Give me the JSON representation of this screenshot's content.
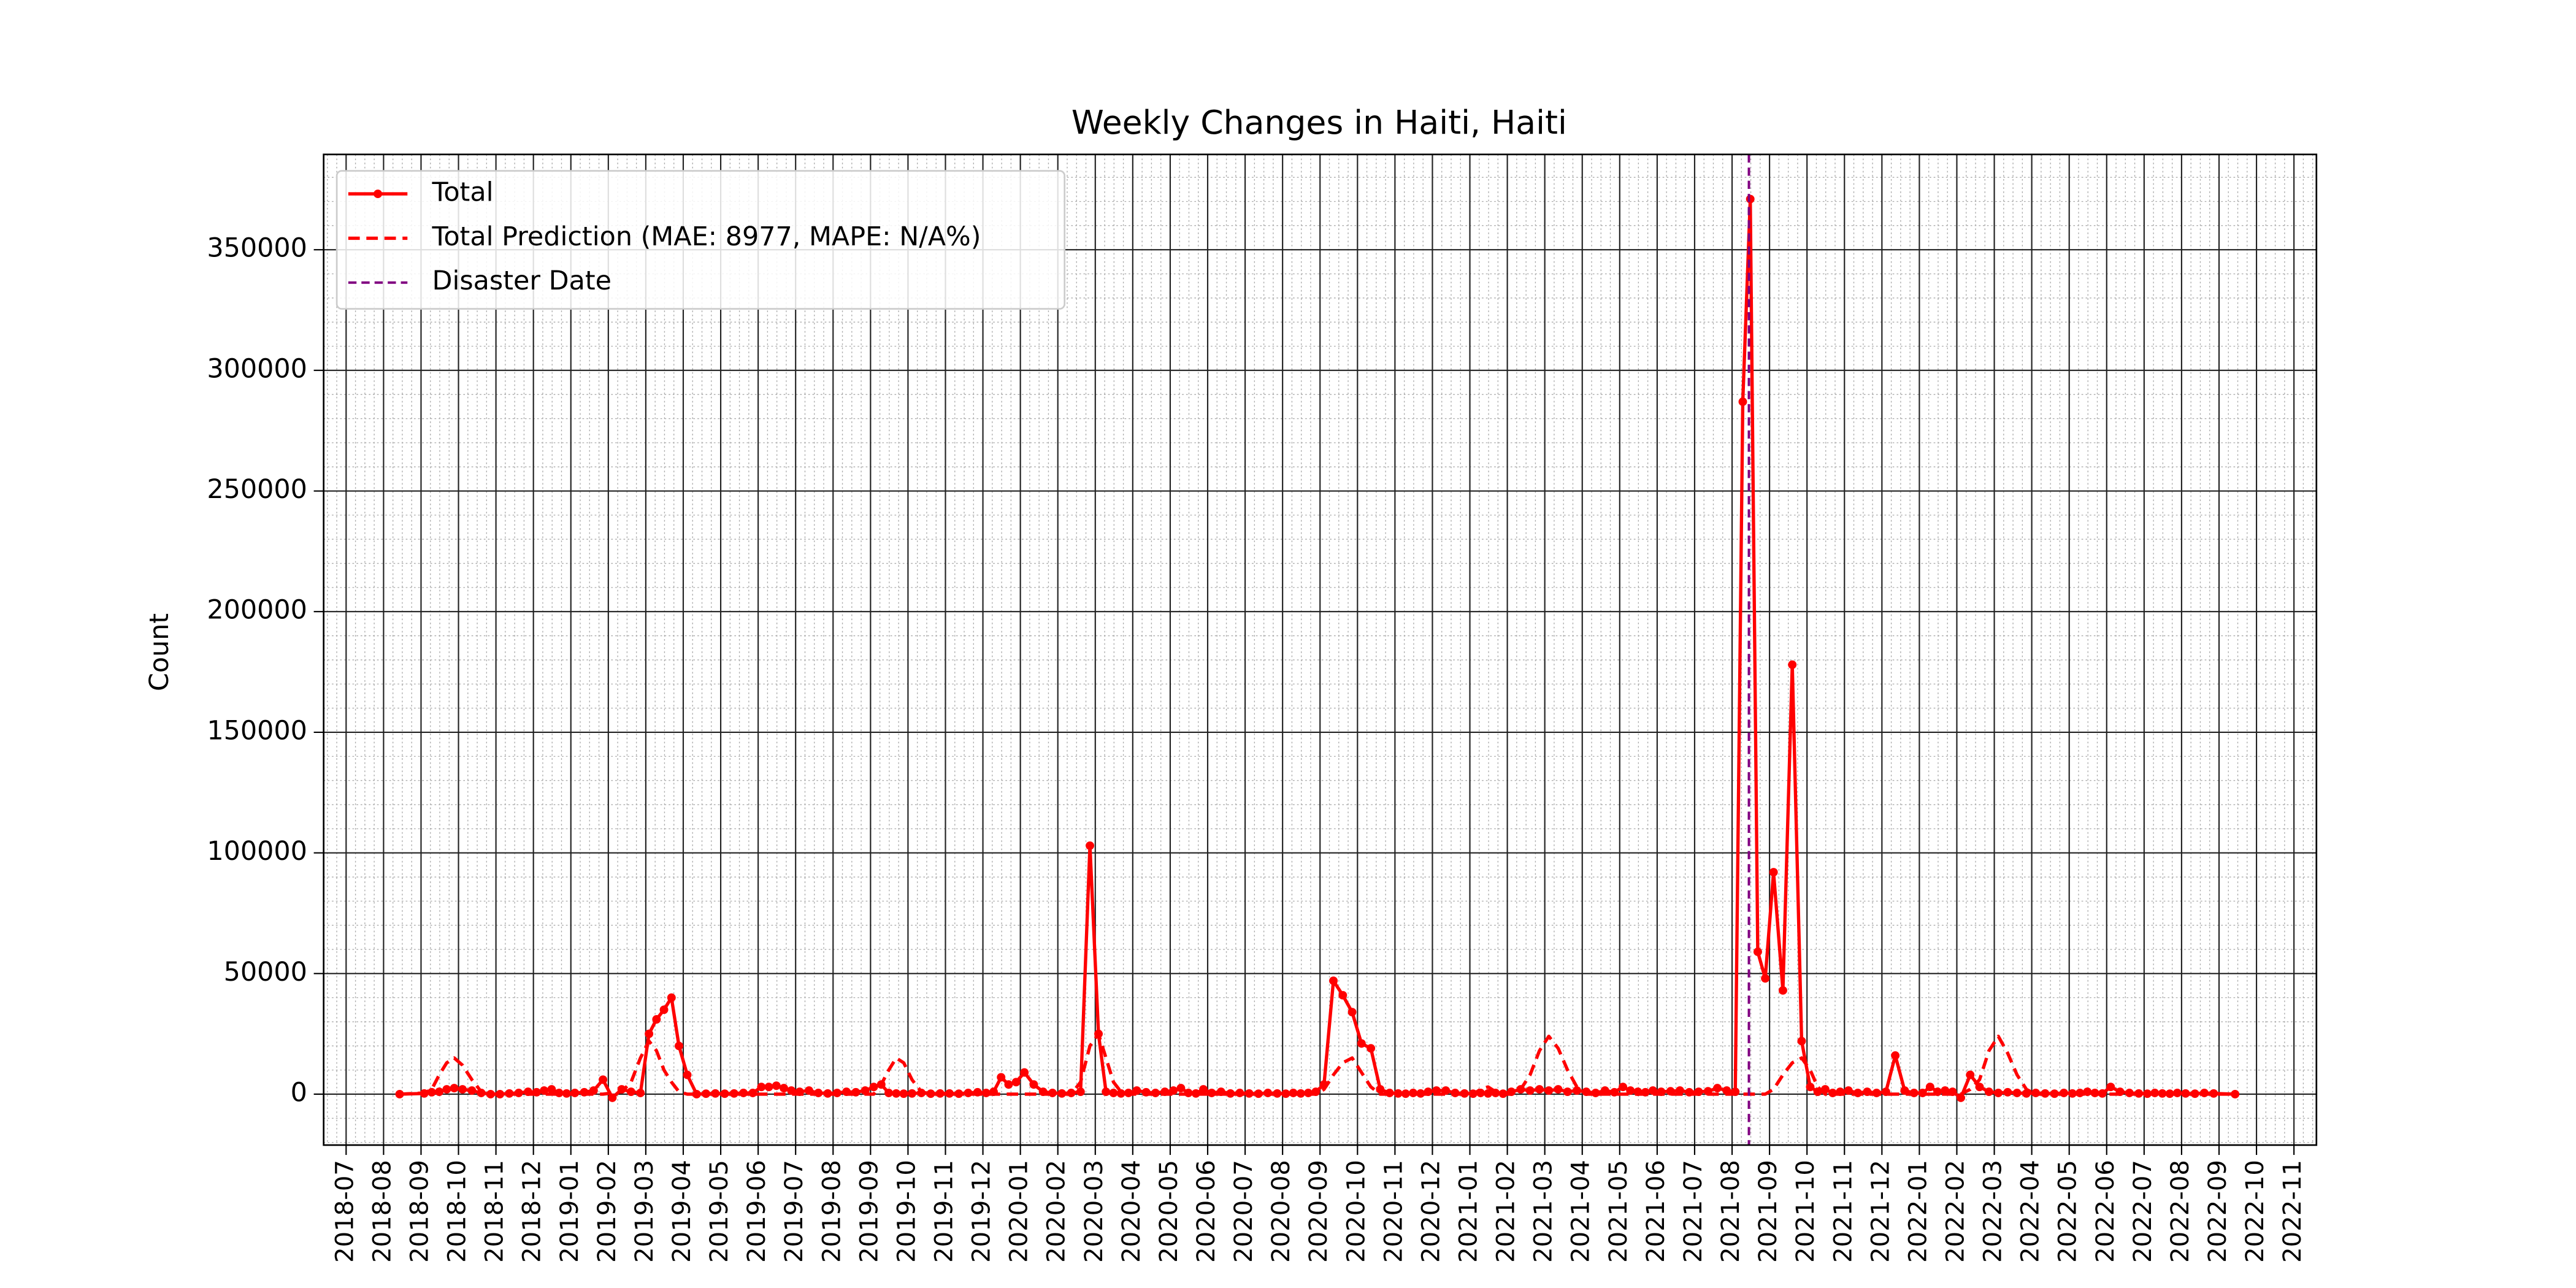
{
  "chart_data": {
    "type": "line",
    "title": "Weekly Changes in Haiti, Haiti",
    "ylabel": "Count",
    "x": [
      "2018-08",
      "2018-09",
      "2018-09",
      "2018-09",
      "2018-09",
      "2018-09",
      "2018-10",
      "2018-10",
      "2018-10",
      "2018-10",
      "2018-11",
      "2018-11",
      "2018-11",
      "2018-11",
      "2018-12",
      "2018-12",
      "2018-12",
      "2018-12",
      "2018-12",
      "2019-01",
      "2019-01",
      "2019-01",
      "2019-01",
      "2019-02",
      "2019-02",
      "2019-02",
      "2019-02",
      "2019-03",
      "2019-03",
      "2019-03",
      "2019-03",
      "2019-03",
      "2019-04",
      "2019-04",
      "2019-04",
      "2019-04",
      "2019-05",
      "2019-05",
      "2019-05",
      "2019-05",
      "2019-06",
      "2019-06",
      "2019-06",
      "2019-06",
      "2019-06",
      "2019-07",
      "2019-07",
      "2019-07",
      "2019-07",
      "2019-08",
      "2019-08",
      "2019-08",
      "2019-08",
      "2019-09",
      "2019-09",
      "2019-09",
      "2019-09",
      "2019-09",
      "2019-10",
      "2019-10",
      "2019-10",
      "2019-10",
      "2019-11",
      "2019-11",
      "2019-11",
      "2019-11",
      "2019-12",
      "2019-12",
      "2019-12",
      "2019-12",
      "2019-12",
      "2020-01",
      "2020-01",
      "2020-01",
      "2020-01",
      "2020-02",
      "2020-02",
      "2020-02",
      "2020-02",
      "2020-03",
      "2020-03",
      "2020-03",
      "2020-03",
      "2020-03",
      "2020-04",
      "2020-04",
      "2020-04",
      "2020-04",
      "2020-05",
      "2020-05",
      "2020-05",
      "2020-05",
      "2020-05",
      "2020-06",
      "2020-06",
      "2020-06",
      "2020-06",
      "2020-07",
      "2020-07",
      "2020-07",
      "2020-07",
      "2020-08",
      "2020-08",
      "2020-08",
      "2020-08",
      "2020-08",
      "2020-09",
      "2020-09",
      "2020-09",
      "2020-09",
      "2020-10",
      "2020-10",
      "2020-10",
      "2020-10",
      "2020-11",
      "2020-11",
      "2020-11",
      "2020-11",
      "2020-11",
      "2020-12",
      "2020-12",
      "2020-12",
      "2020-12",
      "2021-01",
      "2021-01",
      "2021-01",
      "2021-01",
      "2021-01",
      "2021-02",
      "2021-02",
      "2021-02",
      "2021-02",
      "2021-03",
      "2021-03",
      "2021-03",
      "2021-03",
      "2021-04",
      "2021-04",
      "2021-04",
      "2021-04",
      "2021-05",
      "2021-05",
      "2021-05",
      "2021-05",
      "2021-05",
      "2021-06",
      "2021-06",
      "2021-06",
      "2021-06",
      "2021-07",
      "2021-07",
      "2021-07",
      "2021-07",
      "2021-08",
      "2021-08",
      "2021-08",
      "2021-08",
      "2021-08",
      "2021-09",
      "2021-09",
      "2021-09",
      "2021-09",
      "2021-10",
      "2021-10",
      "2021-10",
      "2021-10",
      "2021-10",
      "2021-11",
      "2021-11",
      "2021-11",
      "2021-11",
      "2021-12",
      "2021-12",
      "2021-12",
      "2021-12",
      "2022-01",
      "2022-01",
      "2022-01",
      "2022-01",
      "2022-01",
      "2022-02",
      "2022-02",
      "2022-02",
      "2022-02",
      "2022-03",
      "2022-03",
      "2022-03",
      "2022-03",
      "2022-04",
      "2022-04",
      "2022-04",
      "2022-04",
      "2022-05",
      "2022-05",
      "2022-05",
      "2022-05",
      "2022-05",
      "2022-06",
      "2022-06",
      "2022-06",
      "2022-06",
      "2022-07",
      "2022-07",
      "2022-07",
      "2022-07",
      "2022-07",
      "2022-08",
      "2022-08",
      "2022-08",
      "2022-08",
      "2022-09"
    ],
    "series": [
      {
        "name": "Total",
        "color": "#ff0000",
        "style": "solid",
        "marker": "o",
        "values": [
          0,
          300,
          800,
          1000,
          2000,
          2500,
          2000,
          1500,
          500,
          0,
          0,
          300,
          500,
          1000,
          800,
          1500,
          2000,
          500,
          300,
          500,
          800,
          1500,
          6000,
          -1500,
          2000,
          1000,
          500,
          25000,
          31000,
          35000,
          40000,
          20000,
          8000,
          0,
          200,
          300,
          200,
          300,
          500,
          500,
          3000,
          3000,
          3500,
          2500,
          1500,
          1000,
          1500,
          500,
          300,
          500,
          1000,
          800,
          1500,
          3000,
          4000,
          500,
          300,
          200,
          300,
          500,
          200,
          300,
          300,
          200,
          500,
          800,
          500,
          1000,
          7000,
          4000,
          5000,
          9000,
          4000,
          1000,
          500,
          300,
          500,
          1000,
          103000,
          25000,
          1000,
          500,
          300,
          500,
          1500,
          800,
          500,
          1000,
          1500,
          2500,
          500,
          300,
          2000,
          500,
          1000,
          300,
          500,
          300,
          200,
          500,
          300,
          200,
          500,
          300,
          500,
          1000,
          4000,
          47000,
          41000,
          34000,
          21000,
          19000,
          2000,
          500,
          300,
          200,
          500,
          300,
          1000,
          1500,
          1500,
          500,
          300,
          200,
          500,
          300,
          500,
          200,
          1000,
          2000,
          1500,
          2000,
          1500,
          2000,
          1000,
          1500,
          1000,
          500,
          1500,
          800,
          3000,
          1500,
          1000,
          800,
          1500,
          1000,
          1200,
          1500,
          800,
          1000,
          1200,
          2500,
          1500,
          1000,
          287000,
          371000,
          59000,
          48000,
          92000,
          43000,
          178000,
          22000,
          3000,
          1000,
          2000,
          500,
          1000,
          1500,
          500,
          1000,
          500,
          1000,
          16000,
          1500,
          500,
          500,
          3000,
          1000,
          1500,
          1000,
          -1500,
          8000,
          3000,
          1000,
          500,
          800,
          500,
          300,
          500,
          300,
          200,
          500,
          300,
          500,
          1000,
          500,
          300,
          3000,
          1000,
          500,
          300,
          200,
          500,
          300,
          200,
          500,
          300,
          200,
          500,
          300,
          0
        ]
      },
      {
        "name": "Total Prediction (MAE: 8977, MAPE: N/A%)",
        "color": "#ff0000",
        "style": "dashed",
        "values": [
          0,
          500,
          2000,
          8000,
          13000,
          15000,
          12000,
          6000,
          1000,
          0,
          0,
          0,
          0,
          0,
          0,
          0,
          0,
          0,
          0,
          0,
          0,
          0,
          0,
          500,
          1000,
          5000,
          15000,
          22000,
          18000,
          10000,
          5000,
          1000,
          0,
          0,
          0,
          0,
          0,
          0,
          0,
          0,
          0,
          0,
          0,
          0,
          0,
          0,
          0,
          0,
          0,
          0,
          0,
          0,
          0,
          0,
          4000,
          10000,
          15000,
          13000,
          6000,
          1000,
          0,
          0,
          0,
          0,
          0,
          0,
          0,
          0,
          0,
          0,
          0,
          0,
          0,
          0,
          0,
          0,
          0,
          5000,
          20000,
          25000,
          15000,
          5000,
          1000,
          0,
          0,
          0,
          0,
          0,
          0,
          0,
          0,
          0,
          0,
          0,
          0,
          0,
          0,
          0,
          0,
          0,
          0,
          0,
          0,
          0,
          0,
          0,
          2000,
          8000,
          13000,
          15000,
          9000,
          3000,
          0,
          0,
          0,
          0,
          0,
          0,
          0,
          0,
          0,
          0,
          0,
          0,
          2000,
          3000,
          1000,
          0,
          0,
          2000,
          8000,
          18000,
          24000,
          19000,
          10000,
          3000,
          0,
          0,
          0,
          0,
          0,
          0,
          0,
          0,
          0,
          0,
          0,
          0,
          0,
          0,
          0,
          0,
          0,
          0,
          0,
          0,
          0,
          0,
          2000,
          8000,
          13000,
          15000,
          10000,
          3000,
          0,
          0,
          0,
          0,
          0,
          0,
          0,
          0,
          0,
          0,
          0,
          0,
          0,
          0,
          0,
          0,
          0,
          2000,
          6000,
          18000,
          24000,
          17000,
          8000,
          2000,
          0,
          0,
          0,
          0,
          0,
          0,
          0,
          0,
          0,
          0,
          0,
          0,
          0,
          0,
          0,
          0,
          0,
          0,
          0,
          0,
          0,
          0,
          0
        ]
      }
    ],
    "disaster_date": {
      "label": "Disaster Date",
      "x": "2021-08",
      "color": "#800080",
      "style": "dashed"
    },
    "ylim": [
      -21100,
      389500
    ],
    "yticks": [
      0,
      50000,
      100000,
      150000,
      200000,
      250000,
      300000,
      350000
    ],
    "xticks": [
      "2018-07",
      "2018-08",
      "2018-09",
      "2018-10",
      "2018-11",
      "2018-12",
      "2019-01",
      "2019-02",
      "2019-03",
      "2019-04",
      "2019-05",
      "2019-06",
      "2019-07",
      "2019-08",
      "2019-09",
      "2019-10",
      "2019-11",
      "2019-12",
      "2020-01",
      "2020-02",
      "2020-03",
      "2020-04",
      "2020-05",
      "2020-06",
      "2020-07",
      "2020-08",
      "2020-09",
      "2020-10",
      "2020-11",
      "2020-12",
      "2021-01",
      "2021-02",
      "2021-03",
      "2021-04",
      "2021-05",
      "2021-06",
      "2021-07",
      "2021-08",
      "2021-09",
      "2021-10",
      "2021-11",
      "2021-12",
      "2022-01",
      "2022-02",
      "2022-03",
      "2022-04",
      "2022-05",
      "2022-06",
      "2022-07",
      "2022-08",
      "2022-09",
      "2022-10",
      "2022-11"
    ],
    "grid": true,
    "minor_grid": true,
    "legend": "upper left"
  }
}
